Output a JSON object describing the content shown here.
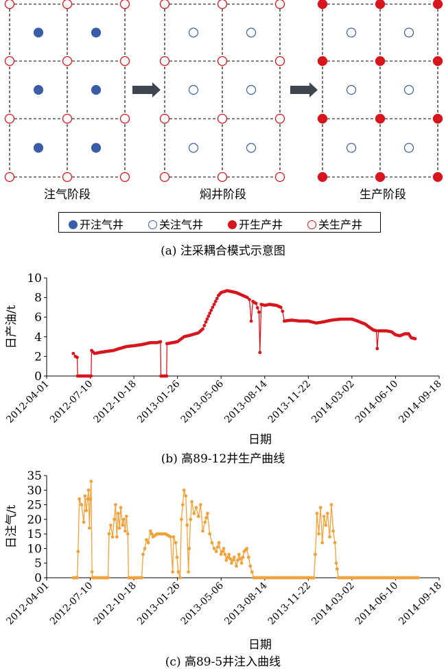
{
  "panel_a": {
    "stages": [
      "注气阶段",
      "焖井阶段",
      "生产阶段"
    ],
    "legend": [
      {
        "label": "开注气井",
        "kind": "filled",
        "color": "#3a5da8"
      },
      {
        "label": "关注气井",
        "kind": "open",
        "color": "#3a5da8"
      },
      {
        "label": "开生产井",
        "kind": "filled",
        "color": "#d7151c"
      },
      {
        "label": "关生产井",
        "kind": "open",
        "color": "#d7151c"
      }
    ],
    "caption": "(a) 注采耦合模式示意图"
  },
  "colors": {
    "injector": "#3a5da8",
    "producer": "#d7151c",
    "gas": "#f2a23c",
    "arrow": "#3c4550"
  },
  "chart_data": [
    {
      "type": "line",
      "color": "#d7151c",
      "ylabel": "日产油/t",
      "xlabel": "日期",
      "caption": "(b) 高89-12井生产曲线",
      "ylim": [
        0,
        10
      ],
      "yticks": [
        0,
        2,
        4,
        6,
        8,
        10
      ],
      "xlim": [
        "2012-04-01",
        "2014-09-18"
      ],
      "xticks": [
        "2012-04-01",
        "2012-07-10",
        "2012-10-18",
        "2013-01-26",
        "2013-05-06",
        "2013-08-14",
        "2013-11-22",
        "2014-03-02",
        "2014-06-10",
        "2014-09-18"
      ],
      "series": [
        {
          "points": [
            [
              "2012-06-01",
              2.3
            ],
            [
              "2012-06-06",
              2.0
            ],
            [
              "2012-06-10",
              1.9
            ],
            [
              "2012-06-11",
              0
            ],
            [
              "2012-07-12",
              0
            ],
            [
              "2012-07-13",
              2.6
            ],
            [
              "2012-07-20",
              2.3
            ],
            [
              "2012-08-01",
              2.4
            ],
            [
              "2012-08-15",
              2.5
            ],
            [
              "2012-09-01",
              2.6
            ],
            [
              "2012-09-15",
              2.8
            ],
            [
              "2012-10-01",
              3.0
            ],
            [
              "2012-10-20",
              3.1
            ],
            [
              "2012-11-05",
              3.2
            ],
            [
              "2012-11-25",
              3.4
            ],
            [
              "2012-12-10",
              3.4
            ],
            [
              "2012-12-18",
              3.5
            ],
            [
              "2012-12-19",
              0
            ],
            [
              "2013-01-01",
              0
            ],
            [
              "2013-01-02",
              3.3
            ],
            [
              "2013-01-15",
              3.4
            ],
            [
              "2013-01-26",
              3.5
            ],
            [
              "2013-02-10",
              4.0
            ],
            [
              "2013-02-28",
              4.2
            ],
            [
              "2013-03-15",
              4.4
            ],
            [
              "2013-03-25",
              4.8
            ],
            [
              "2013-04-01",
              5.5
            ],
            [
              "2013-04-10",
              6.4
            ],
            [
              "2013-04-20",
              7.3
            ],
            [
              "2013-04-30",
              8.2
            ],
            [
              "2013-05-06",
              8.5
            ],
            [
              "2013-05-20",
              8.7
            ],
            [
              "2013-06-10",
              8.5
            ],
            [
              "2013-06-25",
              8.2
            ],
            [
              "2013-07-05",
              8.0
            ],
            [
              "2013-07-10",
              7.8
            ],
            [
              "2013-07-14",
              5.6
            ],
            [
              "2013-07-18",
              7.6
            ],
            [
              "2013-07-25",
              7.4
            ],
            [
              "2013-08-01",
              6.5
            ],
            [
              "2013-08-03",
              2.4
            ],
            [
              "2013-08-06",
              7.3
            ],
            [
              "2013-08-14",
              7.2
            ],
            [
              "2013-08-25",
              7.3
            ],
            [
              "2013-09-10",
              7.2
            ],
            [
              "2013-09-20",
              7.0
            ],
            [
              "2013-09-24",
              6.6
            ],
            [
              "2013-09-28",
              5.6
            ],
            [
              "2013-10-15",
              5.7
            ],
            [
              "2013-11-01",
              5.6
            ],
            [
              "2013-11-22",
              5.6
            ],
            [
              "2013-12-10",
              5.4
            ],
            [
              "2013-12-25",
              5.5
            ],
            [
              "2014-01-15",
              5.7
            ],
            [
              "2014-02-05",
              5.8
            ],
            [
              "2014-03-02",
              5.8
            ],
            [
              "2014-03-15",
              5.6
            ],
            [
              "2014-04-01",
              5.3
            ],
            [
              "2014-04-10",
              5.0
            ],
            [
              "2014-04-20",
              4.7
            ],
            [
              "2014-04-27",
              4.6
            ],
            [
              "2014-04-29",
              2.8
            ],
            [
              "2014-05-02",
              4.6
            ],
            [
              "2014-05-20",
              4.6
            ],
            [
              "2014-06-01",
              4.5
            ],
            [
              "2014-06-10",
              4.2
            ],
            [
              "2014-06-20",
              4.1
            ],
            [
              "2014-07-01",
              4.3
            ],
            [
              "2014-07-10",
              4.3
            ],
            [
              "2014-07-16",
              3.9
            ],
            [
              "2014-07-25",
              3.8
            ]
          ]
        }
      ]
    },
    {
      "type": "line",
      "color": "#f2a23c",
      "ylabel": "日注气/t",
      "xlabel": "日期",
      "caption": "(c) 高89-5井注入曲线",
      "ylim": [
        0,
        35
      ],
      "yticks": [
        0,
        5,
        10,
        15,
        20,
        25,
        30,
        35
      ],
      "xlim": [
        "2012-04-01",
        "2014-09-18"
      ],
      "xticks": [
        "2012-04-01",
        "2012-07-10",
        "2012-10-18",
        "2013-01-26",
        "2013-05-06",
        "2013-08-14",
        "2013-11-22",
        "2014-03-02",
        "2014-06-10",
        "2014-09-18"
      ],
      "series": [
        {
          "points": [
            [
              "2012-06-01",
              0
            ],
            [
              "2012-06-10",
              0
            ],
            [
              "2012-06-12",
              9
            ],
            [
              "2012-06-15",
              27
            ],
            [
              "2012-06-20",
              25
            ],
            [
              "2012-06-25",
              19
            ],
            [
              "2012-06-28",
              28
            ],
            [
              "2012-07-01",
              23
            ],
            [
              "2012-07-04",
              27
            ],
            [
              "2012-07-06",
              30
            ],
            [
              "2012-07-08",
              17
            ],
            [
              "2012-07-10",
              27
            ],
            [
              "2012-07-12",
              33
            ],
            [
              "2012-07-14",
              2
            ],
            [
              "2012-07-15",
              0
            ],
            [
              "2012-08-20",
              0
            ],
            [
              "2012-08-22",
              15
            ],
            [
              "2012-08-26",
              18
            ],
            [
              "2012-08-30",
              14
            ],
            [
              "2012-09-03",
              20
            ],
            [
              "2012-09-06",
              25
            ],
            [
              "2012-09-09",
              14
            ],
            [
              "2012-09-12",
              22
            ],
            [
              "2012-09-15",
              17
            ],
            [
              "2012-09-18",
              24
            ],
            [
              "2012-09-22",
              18
            ],
            [
              "2012-09-25",
              20
            ],
            [
              "2012-09-28",
              16
            ],
            [
              "2012-10-01",
              21
            ],
            [
              "2012-10-04",
              15
            ],
            [
              "2012-10-06",
              0
            ],
            [
              "2012-11-05",
              0
            ],
            [
              "2012-11-08",
              8
            ],
            [
              "2012-11-12",
              10
            ],
            [
              "2012-11-16",
              13
            ],
            [
              "2012-11-20",
              12
            ],
            [
              "2012-11-25",
              16
            ],
            [
              "2012-12-01",
              14
            ],
            [
              "2012-12-10",
              15
            ],
            [
              "2012-12-20",
              15
            ],
            [
              "2012-12-30",
              15
            ],
            [
              "2013-01-10",
              14
            ],
            [
              "2013-01-15",
              2
            ],
            [
              "2013-01-17",
              14
            ],
            [
              "2013-01-22",
              12
            ],
            [
              "2013-01-28",
              2
            ],
            [
              "2013-02-01",
              0
            ],
            [
              "2013-02-04",
              20
            ],
            [
              "2013-02-07",
              25
            ],
            [
              "2013-02-10",
              30
            ],
            [
              "2013-02-14",
              28
            ],
            [
              "2013-02-17",
              18
            ],
            [
              "2013-02-20",
              2
            ],
            [
              "2013-02-22",
              10
            ],
            [
              "2013-02-25",
              20
            ],
            [
              "2013-02-28",
              26
            ],
            [
              "2013-03-05",
              22
            ],
            [
              "2013-03-10",
              24
            ],
            [
              "2013-03-15",
              21
            ],
            [
              "2013-03-20",
              25
            ],
            [
              "2013-03-25",
              16
            ],
            [
              "2013-03-30",
              19
            ],
            [
              "2013-04-05",
              22
            ],
            [
              "2013-04-10",
              15
            ],
            [
              "2013-04-15",
              12
            ],
            [
              "2013-04-20",
              10
            ],
            [
              "2013-04-25",
              9
            ],
            [
              "2013-05-01",
              12
            ],
            [
              "2013-05-06",
              8
            ],
            [
              "2013-05-12",
              10
            ],
            [
              "2013-05-18",
              6
            ],
            [
              "2013-05-24",
              8
            ],
            [
              "2013-05-30",
              5
            ],
            [
              "2013-06-05",
              7
            ],
            [
              "2013-06-10",
              4
            ],
            [
              "2013-06-16",
              8
            ],
            [
              "2013-06-22",
              5
            ],
            [
              "2013-06-28",
              9
            ],
            [
              "2013-07-04",
              10
            ],
            [
              "2013-07-08",
              7
            ],
            [
              "2013-07-12",
              4
            ],
            [
              "2013-07-16",
              2
            ],
            [
              "2013-07-20",
              0
            ],
            [
              "2013-12-05",
              0
            ],
            [
              "2013-12-08",
              8
            ],
            [
              "2013-12-12",
              22
            ],
            [
              "2013-12-16",
              15
            ],
            [
              "2013-12-20",
              24
            ],
            [
              "2013-12-24",
              12
            ],
            [
              "2013-12-28",
              21
            ],
            [
              "2014-01-01",
              18
            ],
            [
              "2014-01-05",
              22
            ],
            [
              "2014-01-10",
              14
            ],
            [
              "2014-01-14",
              25
            ],
            [
              "2014-01-18",
              16
            ],
            [
              "2014-01-22",
              12
            ],
            [
              "2014-01-25",
              5
            ],
            [
              "2014-01-27",
              3
            ],
            [
              "2014-01-30",
              0
            ],
            [
              "2014-08-01",
              0
            ]
          ]
        }
      ]
    }
  ]
}
